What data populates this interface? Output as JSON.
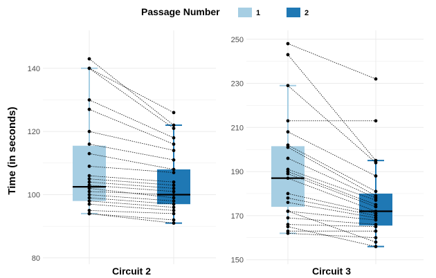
{
  "colors": {
    "passage_1": "#a6cee3",
    "passage_2": "#1f78b4",
    "grid": "#ebebeb",
    "median": "#000000"
  },
  "legend": {
    "title": "Passage Number",
    "items": [
      "1",
      "2"
    ]
  },
  "chart_data": {
    "type": "box",
    "ylabel": "Time (in seconds)",
    "legend_title": "Passage Number",
    "legend_position": "top",
    "grid": true,
    "series_names": [
      "1",
      "2"
    ],
    "panels": [
      {
        "category": "Circuit 2",
        "ylim": [
          78,
          152
        ],
        "yticks": [
          80,
          100,
          120,
          140
        ],
        "boxes": [
          {
            "passage": "1",
            "whisker_low": 94,
            "q1": 98,
            "median": 102.5,
            "q3": 115.5,
            "whisker_high": 140
          },
          {
            "passage": "2",
            "whisker_low": 91,
            "q1": 97,
            "median": 100,
            "q3": 108,
            "whisker_high": 122
          }
        ],
        "pairs": [
          [
            143,
            122
          ],
          [
            140,
            126
          ],
          [
            140,
            121
          ],
          [
            130,
            118
          ],
          [
            127,
            116
          ],
          [
            120,
            114
          ],
          [
            116,
            111
          ],
          [
            113,
            108
          ],
          [
            109,
            107
          ],
          [
            106,
            104
          ],
          [
            105,
            103
          ],
          [
            104,
            102
          ],
          [
            103,
            101
          ],
          [
            102,
            99
          ],
          [
            101,
            100
          ],
          [
            100,
            98
          ],
          [
            99,
            97
          ],
          [
            98,
            96
          ],
          [
            97,
            95
          ],
          [
            95,
            94
          ],
          [
            94,
            92
          ],
          [
            94,
            91
          ]
        ]
      },
      {
        "category": "Circuit 3",
        "ylim": [
          148,
          254
        ],
        "yticks": [
          150,
          170,
          190,
          210,
          230,
          250
        ],
        "boxes": [
          {
            "passage": "1",
            "whisker_low": 162,
            "q1": 174,
            "median": 187,
            "q3": 201.5,
            "whisker_high": 229
          },
          {
            "passage": "2",
            "whisker_low": 156,
            "q1": 165.5,
            "median": 172,
            "q3": 180,
            "whisker_high": 195
          }
        ],
        "pairs": [
          [
            248,
            232
          ],
          [
            243,
            195
          ],
          [
            229,
            194
          ],
          [
            213,
            213
          ],
          [
            208,
            188
          ],
          [
            202,
            181
          ],
          [
            201,
            179
          ],
          [
            196,
            178
          ],
          [
            191,
            177
          ],
          [
            190,
            175
          ],
          [
            189,
            174
          ],
          [
            187,
            172
          ],
          [
            180,
            171
          ],
          [
            178,
            170
          ],
          [
            176,
            169
          ],
          [
            172,
            168
          ],
          [
            169,
            166
          ],
          [
            166,
            165
          ],
          [
            163,
            163
          ],
          [
            162,
            160
          ],
          [
            172,
            158
          ],
          [
            165,
            156
          ]
        ]
      }
    ]
  }
}
